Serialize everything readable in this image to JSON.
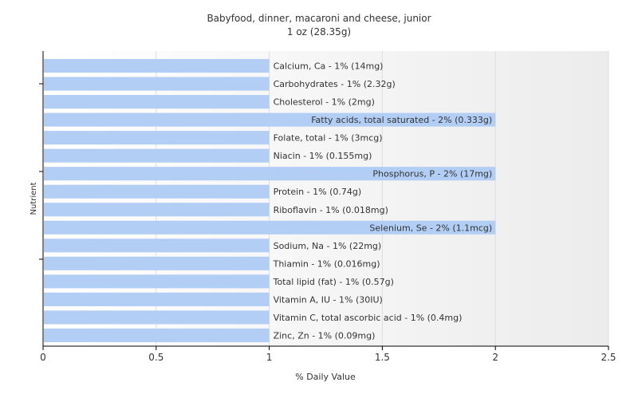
{
  "chart_data": {
    "type": "bar",
    "orientation": "horizontal",
    "title": "Babyfood, dinner, macaroni and cheese, junior",
    "subtitle": "1 oz (28.35g)",
    "xlabel": "% Daily Value",
    "ylabel": "Nutrient",
    "xlim": [
      0,
      2.5
    ],
    "xticks": [
      "0",
      "0.5",
      "1",
      "1.5",
      "2",
      "2.5"
    ],
    "grid": true,
    "bar_color": "#b3cef5",
    "categories": [
      "Calcium, Ca - 1% (14mg)",
      "Carbohydrates - 1% (2.32g)",
      "Cholesterol - 1% (2mg)",
      "Fatty acids, total saturated - 2% (0.333g)",
      "Folate, total - 1% (3mcg)",
      "Niacin - 1% (0.155mg)",
      "Phosphorus, P - 2% (17mg)",
      "Protein - 1% (0.74g)",
      "Riboflavin - 1% (0.018mg)",
      "Selenium, Se - 2% (1.1mcg)",
      "Sodium, Na - 1% (22mg)",
      "Thiamin - 1% (0.016mg)",
      "Total lipid (fat) - 1% (0.57g)",
      "Vitamin A, IU - 1% (30IU)",
      "Vitamin C, total ascorbic acid - 1% (0.4mg)",
      "Zinc, Zn - 1% (0.09mg)"
    ],
    "values": [
      1,
      1,
      1,
      2,
      1,
      1,
      2,
      1,
      1,
      2,
      1,
      1,
      1,
      1,
      1,
      1
    ]
  }
}
